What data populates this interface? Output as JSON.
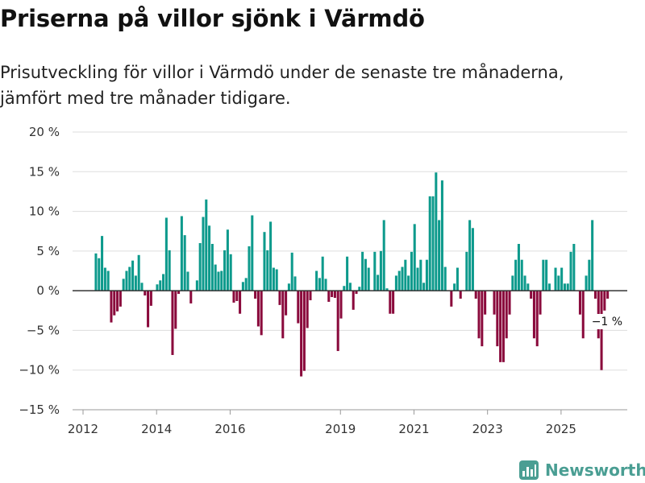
{
  "title": "Priserna på villor sjönk i Värmdö",
  "subtitle": "Prisutveckling för villor i Värmdö under de senaste tre månaderna, jämfört med tre månader tidigare.",
  "brand": {
    "name": "Newsworthy",
    "icon": "newsworthy-logo-icon",
    "color": "#4a9e93"
  },
  "colors": {
    "positive": "#0d9a8c",
    "negative": "#8a0a3c",
    "grid": "#dddddd",
    "zero_line": "#333333",
    "tick_text": "#333333"
  },
  "chart_data": {
    "type": "bar",
    "title": "Priserna på villor sjönk i Värmdö",
    "xlabel": "",
    "ylabel": "",
    "ylim": [
      -15,
      20
    ],
    "y_ticks": [
      20,
      15,
      10,
      5,
      0,
      -5,
      -10,
      -15
    ],
    "y_tick_labels": [
      "20 %",
      "15 %",
      "10 %",
      "5 %",
      "0 %",
      "−5 %",
      "−10 %",
      "−15 %"
    ],
    "x_range": [
      2012.0,
      2026.8
    ],
    "x_ticks": [
      2012,
      2014,
      2016,
      2019,
      2021,
      2023,
      2025
    ],
    "x_tick_labels": [
      "2012",
      "2014",
      "2016",
      "2019",
      "2021",
      "2023",
      "2025"
    ],
    "start_year": 2012.35,
    "step": 0.08333,
    "values": [
      4.7,
      4.1,
      6.9,
      2.9,
      2.5,
      -4.0,
      -3.1,
      -2.6,
      -2.0,
      1.5,
      2.5,
      3.0,
      3.8,
      1.9,
      4.5,
      1.0,
      -0.6,
      -4.6,
      -1.9,
      0.0,
      0.8,
      1.3,
      2.1,
      9.2,
      5.1,
      -8.1,
      -4.8,
      -0.4,
      9.4,
      7.0,
      2.4,
      -1.6,
      0.0,
      1.3,
      6.0,
      9.3,
      11.5,
      8.2,
      5.9,
      3.3,
      2.4,
      2.5,
      5.1,
      7.7,
      4.6,
      -1.5,
      -1.3,
      -2.9,
      1.1,
      1.6,
      5.6,
      9.5,
      -1.0,
      -4.5,
      -5.6,
      7.4,
      5.1,
      8.7,
      2.9,
      2.7,
      -1.8,
      -6.0,
      -3.1,
      0.9,
      4.8,
      1.8,
      -4.1,
      -10.8,
      -10.1,
      -4.7,
      -1.2,
      0.0,
      2.5,
      1.6,
      4.3,
      1.5,
      -1.4,
      -0.8,
      -0.9,
      -7.6,
      -3.5,
      0.6,
      4.3,
      1.0,
      -2.4,
      -0.4,
      0.5,
      4.9,
      4.0,
      2.9,
      0.0,
      4.9,
      2.0,
      5.0,
      8.9,
      0.3,
      -2.9,
      -2.9,
      1.9,
      2.5,
      3.0,
      3.9,
      1.9,
      4.9,
      8.4,
      2.9,
      3.9,
      1.0,
      3.9,
      11.9,
      11.9,
      14.9,
      8.9,
      13.9,
      3.0,
      0.0,
      -2.0,
      0.9,
      2.9,
      -1.0,
      0.0,
      4.9,
      8.9,
      7.9,
      -1.0,
      -6.0,
      -7.0,
      -3.0,
      0.0,
      0.0,
      -3.0,
      -7.0,
      -9.0,
      -9.0,
      -6.0,
      -3.0,
      1.9,
      3.9,
      5.9,
      3.9,
      1.9,
      0.9,
      -1.0,
      -6.0,
      -7.0,
      -3.0,
      3.9,
      3.9,
      0.9,
      0.0,
      2.9,
      1.9,
      2.9,
      0.9,
      0.9,
      4.9,
      5.9,
      0.0,
      -3.0,
      -6.0,
      1.9,
      3.9,
      8.9,
      -1.0,
      -6.0,
      -10.0,
      -2.5,
      -1.0
    ],
    "last_value_label": "−1 %"
  }
}
